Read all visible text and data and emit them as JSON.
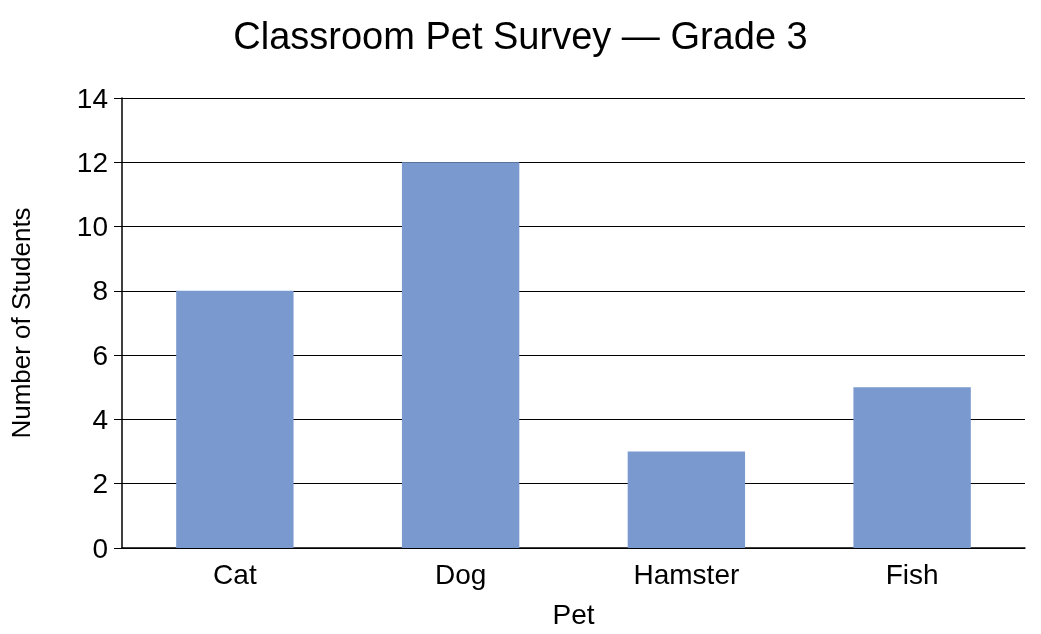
{
  "chart_data": {
    "type": "bar",
    "title": "Classroom Pet Survey — Grade 3",
    "xlabel": "Pet",
    "ylabel": "Number of Students",
    "categories": [
      "Cat",
      "Dog",
      "Hamster",
      "Fish"
    ],
    "values": [
      8,
      12,
      3,
      5
    ],
    "color": "#7a9acf",
    "ylim": [
      0,
      14
    ],
    "yticks": [
      0,
      2,
      4,
      6,
      8,
      10,
      12,
      14
    ],
    "grid": "y"
  }
}
